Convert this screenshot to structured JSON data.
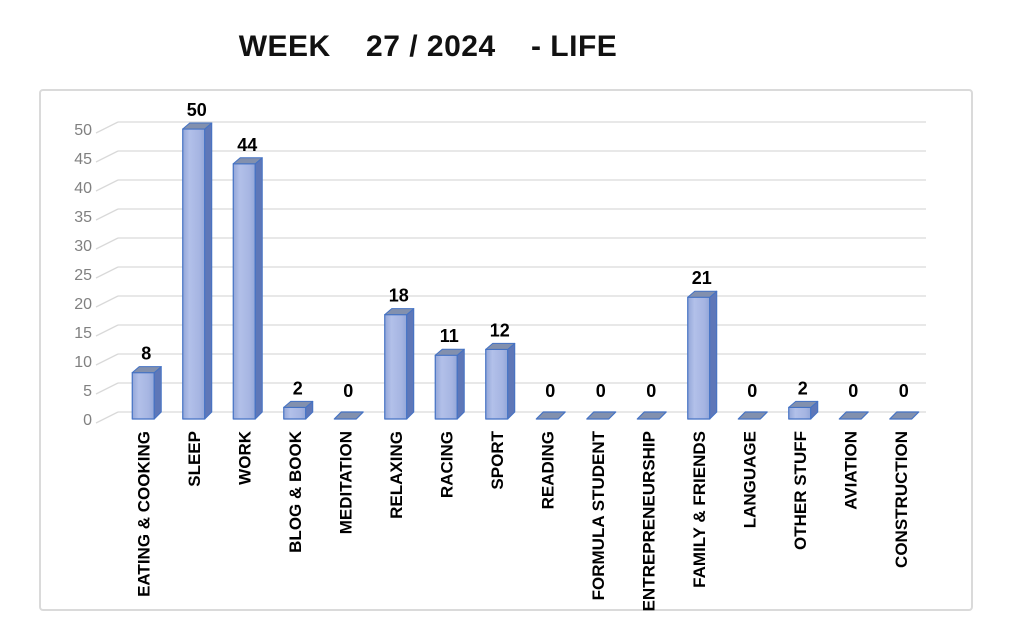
{
  "title": "WEEK    27 / 2024    - LIFE",
  "chart_data": {
    "type": "bar",
    "style": "3d-column",
    "title": "WEEK 27 / 2024 - LIFE",
    "xlabel": "",
    "ylabel": "",
    "categories": [
      "EATING & COOKING",
      "SLEEP",
      "WORK",
      "BLOG & BOOK",
      "MEDITATION",
      "RELAXING",
      "RACING",
      "SPORT",
      "READING",
      "FORMULA STUDENT",
      "ENTREPRENEURSHIP",
      "FAMILY & FRIENDS",
      "LANGUAGE",
      "OTHER STUFF",
      "AVIATION",
      "CONSTRUCTION"
    ],
    "values": [
      8,
      50,
      44,
      2,
      0,
      18,
      11,
      12,
      0,
      0,
      0,
      21,
      0,
      2,
      0,
      0
    ],
    "y_ticks": [
      0,
      5,
      10,
      15,
      20,
      25,
      30,
      35,
      40,
      45,
      50
    ],
    "ylim": [
      0,
      50
    ],
    "grid": true,
    "value_labels_shown": true,
    "legend": "none",
    "colors": {
      "bar_front_light": "#b2c0e9",
      "bar_front_mid": "#a6b5e2",
      "bar_front_dark": "#93a6d8",
      "bar_side": "#5e77b8",
      "bar_top": "#8290ae",
      "bar_outline": "#4472c4",
      "gridline": "#d9d9d9",
      "tick_label": "#808080",
      "frame_border": "#dadada",
      "label_color": "#000000",
      "background": "#ffffff"
    }
  }
}
